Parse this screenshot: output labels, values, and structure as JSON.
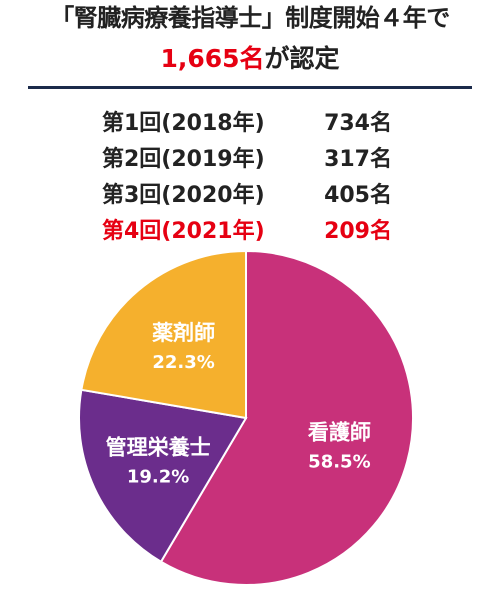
{
  "title": {
    "line1": "「腎臓病療養指導士」制度開始４年で",
    "line2_number": "1,665名",
    "line2_suffix": "が認定"
  },
  "rows": [
    {
      "label": "第1回(2018年)",
      "value": "734名",
      "highlight": false
    },
    {
      "label": "第2回(2019年)",
      "value": "317名",
      "highlight": false
    },
    {
      "label": "第3回(2020年)",
      "value": "405名",
      "highlight": false
    },
    {
      "label": "第4回(2021年)",
      "value": "209名",
      "highlight": true
    }
  ],
  "colors": {
    "accent": "#e60012",
    "rule": "#1b2a4a"
  },
  "chart_data": {
    "type": "pie",
    "categories": [
      "看護師",
      "管理栄養士",
      "薬剤師"
    ],
    "values": [
      58.5,
      19.2,
      22.3
    ],
    "value_labels": [
      "58.5%",
      "19.2%",
      "22.3%"
    ],
    "colors": [
      "#c8317a",
      "#6b2d8c",
      "#f5b02d"
    ]
  }
}
